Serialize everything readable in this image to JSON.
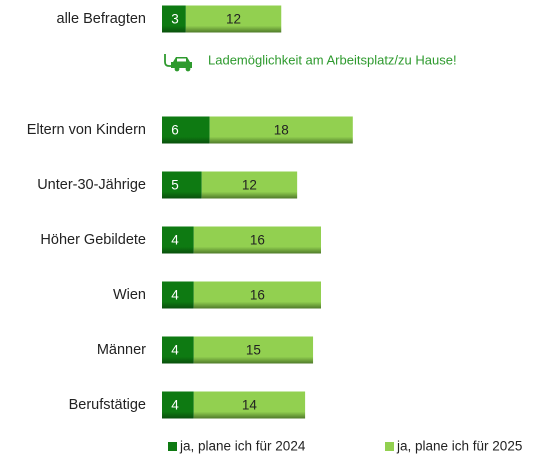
{
  "chart_data": {
    "type": "stacked-bar-horizontal",
    "categories": [
      "alle Befragten",
      "Eltern von Kindern",
      "Unter-30-Jährige",
      "Höher Gebildete",
      "Wien",
      "Männer",
      "Berufstätige"
    ],
    "series": [
      {
        "name": "ja, plane ich für 2024",
        "color": "#0e7a12",
        "values": [
          3,
          6,
          5,
          4,
          4,
          4,
          4
        ]
      },
      {
        "name": "ja, plane ich für 2025",
        "color": "#92d050",
        "values": [
          12,
          18,
          12,
          16,
          16,
          15,
          14
        ]
      }
    ],
    "annotation": "Lademöglichkeit am Arbeitsplatz/zu Hause!",
    "legend": "bottom"
  }
}
